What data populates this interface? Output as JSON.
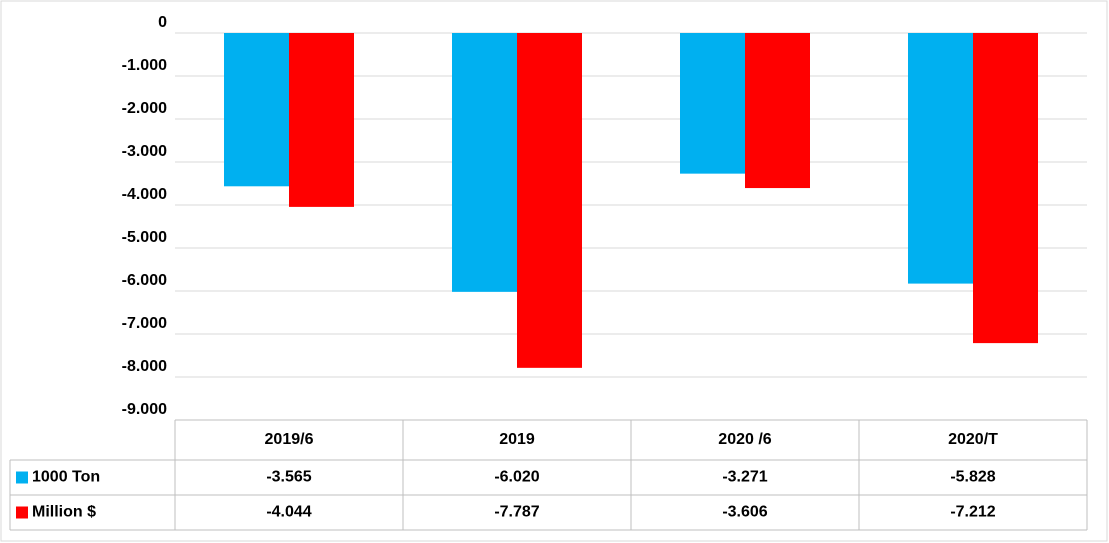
{
  "chart_data": {
    "type": "bar",
    "categories": [
      "2019/6",
      "2019",
      "2020 /6",
      "2020/T"
    ],
    "series": [
      {
        "name": "1000 Ton",
        "color": "#00b0f0",
        "values": [
          -3565,
          -6020,
          -3271,
          -5828
        ],
        "value_labels": [
          "-3.565",
          "-6.020",
          "-3.271",
          "-5.828"
        ]
      },
      {
        "name": "Million $",
        "color": "#ff0000",
        "values": [
          -4044,
          -7787,
          -3606,
          -7212
        ],
        "value_labels": [
          "-4.044",
          "-7.787",
          "-3.606",
          "-7.212"
        ]
      }
    ],
    "ylim": [
      -9000,
      0
    ],
    "yticks": [
      0,
      {
        "value": -1000,
        "label": "-1.000"
      },
      {
        "value": -2000,
        "label": "-2.000"
      },
      {
        "value": -3000,
        "label": "-3.000"
      },
      {
        "value": -4000,
        "label": "-4.000"
      },
      {
        "value": -5000,
        "label": "-5.000"
      },
      {
        "value": -6000,
        "label": "-6.000"
      },
      {
        "value": -7000,
        "label": "-7.000"
      },
      {
        "value": -8000,
        "label": "-8.000"
      },
      {
        "value": -9000,
        "label": "-9.000"
      }
    ],
    "grid": true
  }
}
